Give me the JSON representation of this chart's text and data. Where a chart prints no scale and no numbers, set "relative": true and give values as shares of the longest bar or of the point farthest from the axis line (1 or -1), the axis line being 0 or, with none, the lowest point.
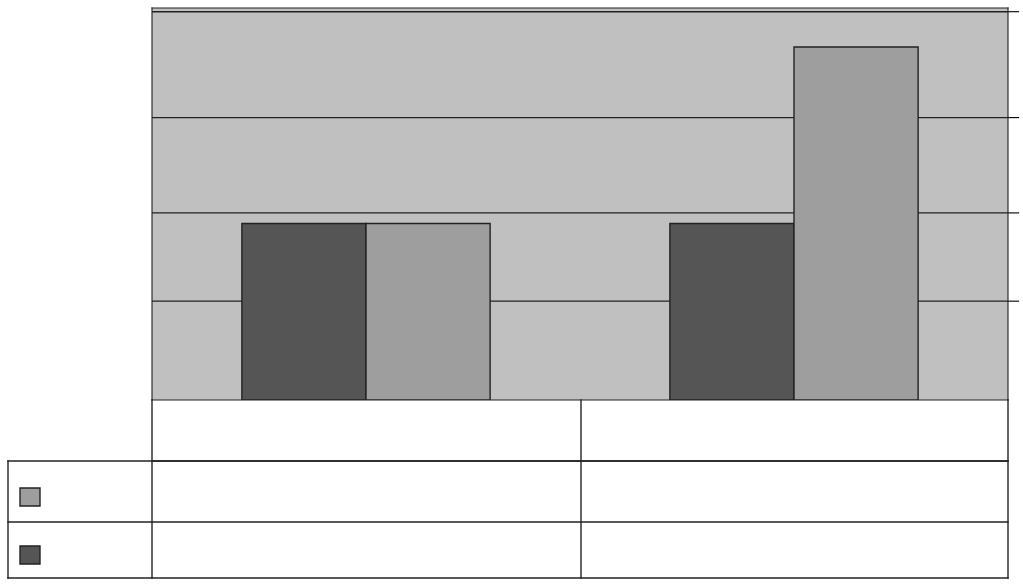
{
  "chart_data": {
    "type": "bar",
    "relative": true,
    "categories": [
      null,
      null
    ],
    "series": [
      {
        "color": "#555555",
        "values": [
          0.5,
          0.5
        ]
      },
      {
        "color": "#9e9e9e",
        "values": [
          0.5,
          1
        ]
      }
    ],
    "grid": "y",
    "data_labels": false
  }
}
